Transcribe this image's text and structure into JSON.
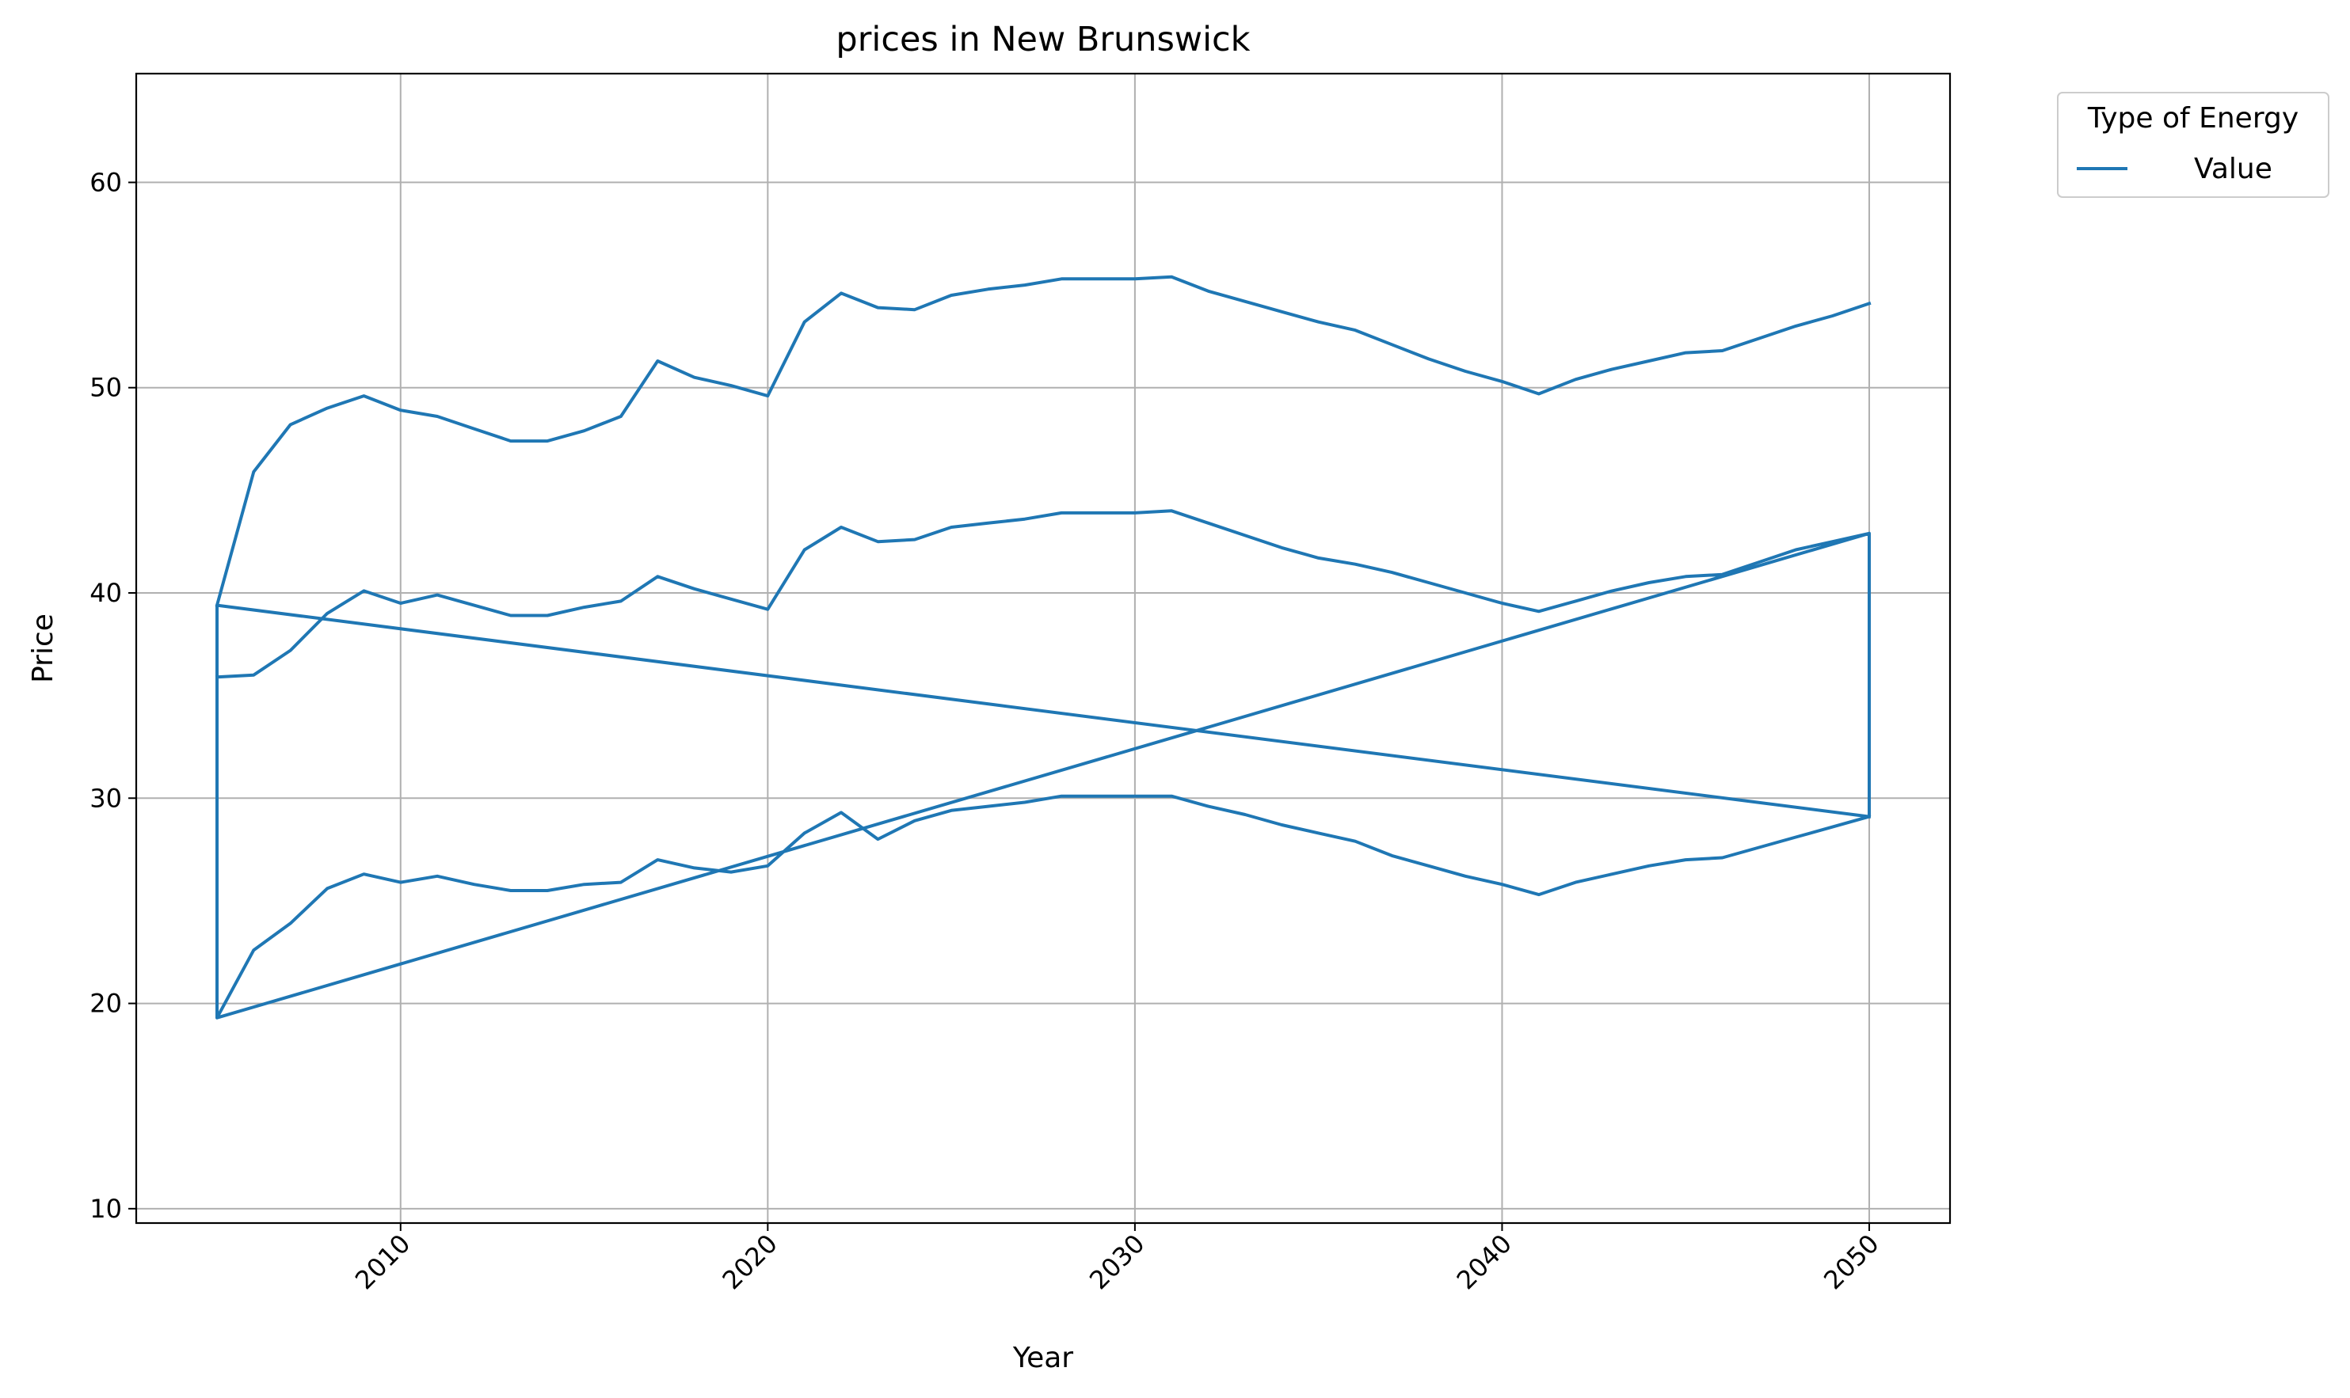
{
  "chart_data": {
    "type": "line",
    "title": "prices in New Brunswick",
    "xlabel": "Year",
    "ylabel": "Price",
    "xlim": [
      2002.8,
      2052.2
    ],
    "ylim": [
      9.3,
      65.3
    ],
    "xticks": [
      2010,
      2020,
      2030,
      2040,
      2050
    ],
    "yticks": [
      10,
      20,
      30,
      40,
      50,
      60
    ],
    "x_tick_rotation": 45,
    "grid": true,
    "legend": {
      "title": "Type of Energy",
      "placement": "outside-upper-right",
      "entries": [
        "Value"
      ]
    },
    "color": "#1f77b4",
    "series": [
      {
        "name": "Value",
        "x": [
          2005,
          2006,
          2007,
          2008,
          2009,
          2010,
          2011,
          2012,
          2013,
          2014,
          2015,
          2016,
          2017,
          2018,
          2019,
          2020,
          2021,
          2022,
          2023,
          2024,
          2025,
          2026,
          2027,
          2028,
          2029,
          2030,
          2031,
          2032,
          2033,
          2034,
          2035,
          2036,
          2037,
          2038,
          2039,
          2040,
          2041,
          2042,
          2043,
          2044,
          2045,
          2046,
          2047,
          2048,
          2049,
          2050,
          2005,
          2050,
          2050,
          2049,
          2048,
          2047,
          2046,
          2045,
          2044,
          2043,
          2042,
          2041,
          2040,
          2039,
          2038,
          2037,
          2036,
          2035,
          2034,
          2033,
          2032,
          2031,
          2030,
          2029,
          2028,
          2027,
          2026,
          2025,
          2024,
          2023,
          2022,
          2021,
          2020,
          2019,
          2018,
          2017,
          2016,
          2015,
          2014,
          2013,
          2012,
          2011,
          2010,
          2009,
          2008,
          2007,
          2006,
          2005,
          2005,
          2050
        ],
        "y": [
          35.9,
          36.0,
          37.2,
          39.0,
          40.1,
          39.5,
          39.9,
          39.4,
          38.9,
          38.9,
          39.3,
          39.6,
          40.8,
          40.2,
          39.7,
          39.2,
          42.1,
          43.2,
          42.5,
          42.6,
          43.2,
          43.4,
          43.6,
          43.9,
          43.9,
          43.9,
          44.0,
          43.4,
          42.8,
          42.2,
          41.7,
          41.4,
          41.0,
          40.5,
          40.0,
          39.5,
          39.1,
          39.6,
          40.1,
          40.5,
          40.8,
          40.9,
          41.5,
          42.1,
          42.5,
          42.9,
          19.3,
          42.9,
          29.1,
          28.6,
          28.1,
          27.6,
          27.1,
          27.0,
          26.7,
          26.3,
          25.9,
          25.3,
          25.8,
          26.2,
          26.7,
          27.2,
          27.9,
          28.3,
          28.7,
          29.2,
          29.6,
          30.1,
          30.1,
          30.1,
          30.1,
          29.8,
          29.6,
          29.4,
          28.9,
          28.0,
          29.3,
          28.3,
          26.7,
          26.4,
          26.6,
          27.0,
          25.9,
          25.8,
          25.5,
          25.5,
          25.8,
          26.2,
          25.9,
          26.3,
          25.6,
          23.9,
          22.6,
          19.3,
          39.4,
          29.1
        ]
      },
      {
        "name": "",
        "x": [
          2005,
          2006,
          2007,
          2008,
          2009,
          2010,
          2011,
          2012,
          2013,
          2014,
          2015,
          2016,
          2017,
          2018,
          2019,
          2020,
          2021,
          2022,
          2023,
          2024,
          2025,
          2026,
          2027,
          2028,
          2029,
          2030,
          2031,
          2032,
          2033,
          2034,
          2035,
          2036,
          2037,
          2038,
          2039,
          2040,
          2041,
          2042,
          2043,
          2044,
          2045,
          2046,
          2047,
          2048,
          2049,
          2050
        ],
        "y": [
          39.4,
          45.9,
          48.2,
          49.0,
          49.6,
          48.9,
          48.6,
          48.0,
          47.4,
          47.4,
          47.9,
          48.6,
          51.3,
          50.5,
          50.1,
          49.6,
          53.2,
          54.6,
          53.9,
          53.8,
          54.5,
          54.8,
          55.0,
          55.3,
          55.3,
          55.3,
          55.4,
          54.7,
          54.2,
          53.7,
          53.2,
          52.8,
          52.1,
          51.4,
          50.8,
          50.3,
          49.7,
          50.4,
          50.9,
          51.3,
          51.7,
          51.8,
          52.4,
          53.0,
          53.5,
          54.1
        ]
      }
    ]
  }
}
